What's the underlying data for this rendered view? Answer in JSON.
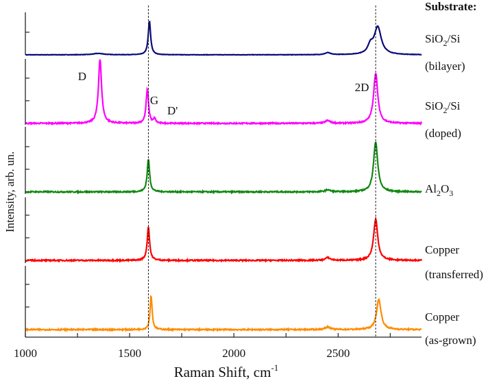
{
  "chart_data": {
    "type": "line",
    "xlabel": "Raman Shift, cm",
    "xlabel_sup": "-1",
    "ylabel": "Intensity, arb. un.",
    "xlim": [
      1000,
      2900
    ],
    "xticks": [
      1000,
      1500,
      2000,
      2500
    ],
    "stacked_panels": true,
    "legend_title": "Substrate:",
    "reference_lines": [
      1590,
      2680
    ],
    "peak_labels": [
      {
        "text": "D",
        "x": 1358,
        "series": 1
      },
      {
        "text": "G",
        "x": 1585,
        "series": 1
      },
      {
        "text": "D'",
        "x": 1620,
        "series": 1
      },
      {
        "text": "2D",
        "x": 2680,
        "series": 1
      }
    ],
    "series": [
      {
        "name_line1": "SiO",
        "sub1": "2",
        "name_rest1": "/Si",
        "name_line2": "(bilayer)",
        "color": "#0a0a7a",
        "peaks": [
          {
            "x": 1595,
            "i": 0.49,
            "w": 7
          },
          {
            "x": 1350,
            "i": 0.02,
            "w": 30
          },
          {
            "x": 2450,
            "i": 0.03,
            "w": 15
          },
          {
            "x": 2690,
            "i": 0.4,
            "w": 20
          },
          {
            "x": 2655,
            "i": 0.12,
            "w": 15
          }
        ]
      },
      {
        "name_line1": "SiO",
        "sub1": "2",
        "name_rest1": "/Si",
        "name_line2": "(doped)",
        "color": "#ff00ff",
        "peaks": [
          {
            "x": 1358,
            "i": 0.94,
            "w": 9
          },
          {
            "x": 1585,
            "i": 0.5,
            "w": 7
          },
          {
            "x": 1620,
            "i": 0.07,
            "w": 5
          },
          {
            "x": 2450,
            "i": 0.04,
            "w": 14
          },
          {
            "x": 2680,
            "i": 0.73,
            "w": 12
          }
        ]
      },
      {
        "name_line1": "Al",
        "sub1": "2",
        "name_rest1": "O",
        "sub2": "3",
        "name_line2": "",
        "color": "#118811",
        "peaks": [
          {
            "x": 1590,
            "i": 0.48,
            "w": 7
          },
          {
            "x": 2450,
            "i": 0.03,
            "w": 14
          },
          {
            "x": 2680,
            "i": 0.73,
            "w": 12
          }
        ]
      },
      {
        "name_line1": "Copper",
        "name_line2": "(transferred)",
        "color": "#ff0000",
        "peaks": [
          {
            "x": 1590,
            "i": 0.49,
            "w": 7
          },
          {
            "x": 2450,
            "i": 0.04,
            "w": 14
          },
          {
            "x": 2680,
            "i": 0.6,
            "w": 12
          }
        ]
      },
      {
        "name_line1": "Copper",
        "name_line2": "(as-grown)",
        "color": "#ff8c00",
        "peaks": [
          {
            "x": 1603,
            "i": 0.49,
            "w": 6
          },
          {
            "x": 2450,
            "i": 0.04,
            "w": 14
          },
          {
            "x": 2695,
            "i": 0.44,
            "w": 13
          }
        ]
      }
    ]
  }
}
